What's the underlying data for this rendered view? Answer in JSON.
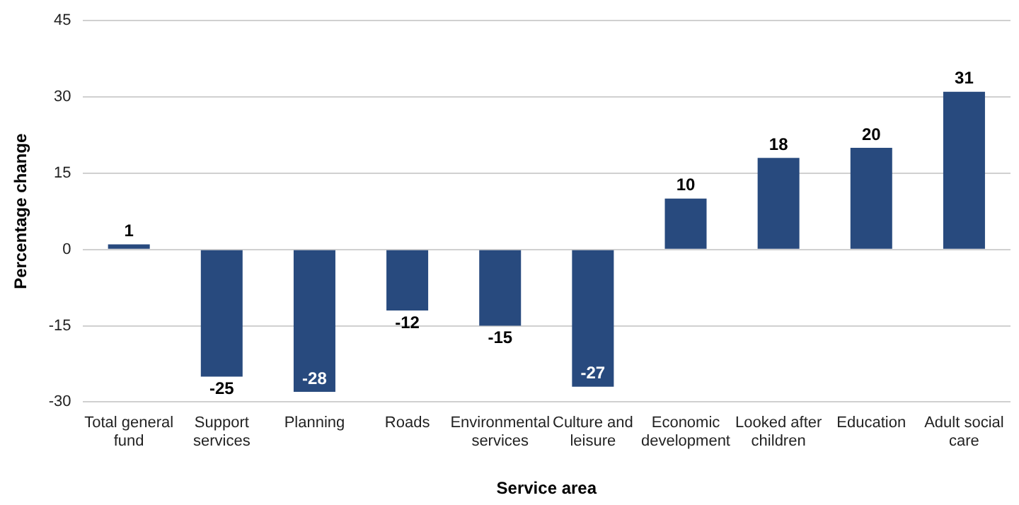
{
  "chart_data": {
    "type": "bar",
    "xlabel": "Service area",
    "ylabel": "Percentage change",
    "categories": [
      "Total general fund",
      "Support services",
      "Planning",
      "Roads",
      "Environmental services",
      "Culture and leisure",
      "Economic development",
      "Looked after children",
      "Education",
      "Adult social care"
    ],
    "values": [
      1,
      -25,
      -28,
      -12,
      -15,
      -27,
      10,
      18,
      20,
      31
    ],
    "color": "#284a7e",
    "ylim": [
      -30,
      45
    ],
    "yticks": [
      -30,
      -15,
      0,
      15,
      30,
      45
    ],
    "grid": "y",
    "legend": false,
    "data_labels": true
  }
}
